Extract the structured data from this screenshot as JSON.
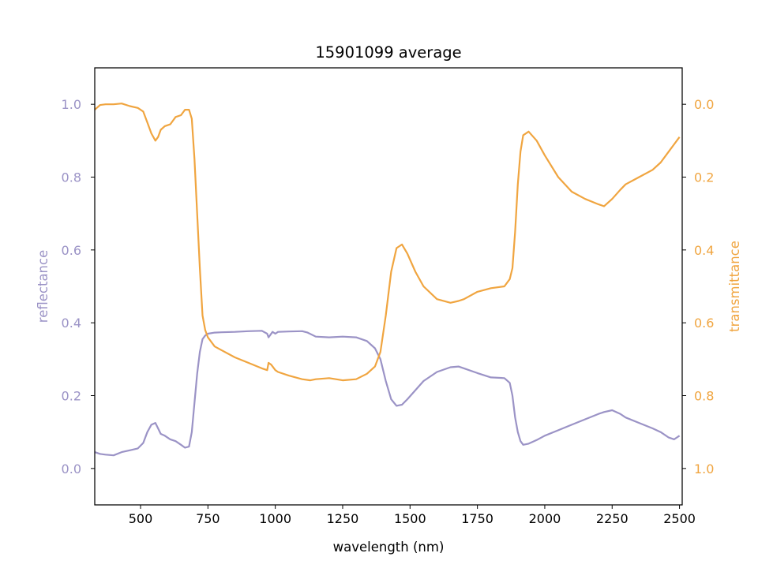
{
  "chart_data": {
    "type": "line",
    "title": "15901099 average",
    "xlabel": "wavelength (nm)",
    "ylabel_left": "reflectance",
    "ylabel_right": "transmittance",
    "xlim": [
      330,
      2510
    ],
    "ylim_left": [
      -0.1,
      1.1
    ],
    "ylim_right_inverted": [
      1.1,
      -0.1
    ],
    "xticks": [
      "500",
      "750",
      "1000",
      "1250",
      "1500",
      "1750",
      "2000",
      "2250",
      "2500"
    ],
    "yticks_left": [
      "0.0",
      "0.2",
      "0.4",
      "0.6",
      "0.8",
      "1.0"
    ],
    "yticks_right": [
      "0.0",
      "0.2",
      "0.4",
      "0.6",
      "0.8",
      "1.0"
    ],
    "grid": false,
    "colors": {
      "reflectance": "#9b93c6",
      "transmittance": "#f0a540"
    },
    "series": [
      {
        "name": "reflectance",
        "axis": "left",
        "x": [
          330,
          350,
          370,
          400,
          430,
          460,
          490,
          510,
          525,
          540,
          555,
          565,
          575,
          590,
          610,
          630,
          650,
          665,
          680,
          690,
          700,
          710,
          720,
          730,
          740,
          750,
          775,
          800,
          850,
          900,
          950,
          970,
          975,
          980,
          990,
          1000,
          1010,
          1050,
          1100,
          1120,
          1150,
          1200,
          1250,
          1300,
          1340,
          1370,
          1390,
          1410,
          1430,
          1450,
          1470,
          1490,
          1520,
          1550,
          1600,
          1650,
          1680,
          1700,
          1750,
          1800,
          1850,
          1870,
          1880,
          1890,
          1900,
          1910,
          1920,
          1940,
          1970,
          2000,
          2050,
          2100,
          2150,
          2200,
          2220,
          2250,
          2280,
          2300,
          2350,
          2400,
          2430,
          2460,
          2480,
          2500
        ],
        "y": [
          0.045,
          0.04,
          0.038,
          0.036,
          0.045,
          0.05,
          0.055,
          0.07,
          0.1,
          0.12,
          0.125,
          0.11,
          0.095,
          0.09,
          0.08,
          0.075,
          0.065,
          0.057,
          0.06,
          0.1,
          0.18,
          0.26,
          0.32,
          0.355,
          0.365,
          0.37,
          0.373,
          0.374,
          0.375,
          0.377,
          0.378,
          0.37,
          0.36,
          0.365,
          0.375,
          0.37,
          0.375,
          0.376,
          0.377,
          0.373,
          0.362,
          0.36,
          0.362,
          0.36,
          0.35,
          0.33,
          0.3,
          0.24,
          0.19,
          0.172,
          0.175,
          0.19,
          0.215,
          0.24,
          0.265,
          0.278,
          0.28,
          0.275,
          0.262,
          0.25,
          0.248,
          0.235,
          0.2,
          0.14,
          0.1,
          0.075,
          0.065,
          0.068,
          0.078,
          0.09,
          0.105,
          0.12,
          0.135,
          0.15,
          0.155,
          0.16,
          0.15,
          0.14,
          0.125,
          0.11,
          0.1,
          0.085,
          0.08,
          0.09
        ]
      },
      {
        "name": "transmittance",
        "axis": "right",
        "x": [
          330,
          350,
          370,
          400,
          430,
          460,
          490,
          510,
          525,
          540,
          555,
          565,
          575,
          590,
          610,
          630,
          650,
          665,
          680,
          690,
          700,
          710,
          720,
          730,
          740,
          750,
          775,
          800,
          850,
          900,
          950,
          970,
          975,
          985,
          995,
          1000,
          1010,
          1050,
          1100,
          1130,
          1150,
          1200,
          1250,
          1300,
          1340,
          1370,
          1390,
          1410,
          1430,
          1450,
          1470,
          1490,
          1520,
          1550,
          1600,
          1650,
          1680,
          1700,
          1750,
          1800,
          1850,
          1870,
          1880,
          1890,
          1900,
          1910,
          1920,
          1940,
          1970,
          2000,
          2050,
          2100,
          2150,
          2200,
          2220,
          2250,
          2280,
          2300,
          2350,
          2400,
          2430,
          2460,
          2480,
          2500
        ],
        "y": [
          0.015,
          0.002,
          0.0,
          0.0,
          -0.002,
          0.005,
          0.01,
          0.02,
          0.05,
          0.08,
          0.1,
          0.09,
          0.07,
          0.06,
          0.055,
          0.035,
          0.03,
          0.015,
          0.015,
          0.04,
          0.15,
          0.3,
          0.45,
          0.58,
          0.62,
          0.64,
          0.665,
          0.675,
          0.695,
          0.71,
          0.725,
          0.73,
          0.71,
          0.715,
          0.725,
          0.73,
          0.735,
          0.745,
          0.755,
          0.758,
          0.755,
          0.752,
          0.758,
          0.755,
          0.74,
          0.72,
          0.68,
          0.58,
          0.46,
          0.395,
          0.385,
          0.41,
          0.46,
          0.5,
          0.535,
          0.545,
          0.54,
          0.535,
          0.515,
          0.505,
          0.5,
          0.48,
          0.45,
          0.35,
          0.22,
          0.13,
          0.085,
          0.075,
          0.1,
          0.14,
          0.2,
          0.24,
          0.26,
          0.275,
          0.28,
          0.26,
          0.235,
          0.22,
          0.2,
          0.18,
          0.16,
          0.13,
          0.11,
          0.09
        ]
      }
    ]
  }
}
